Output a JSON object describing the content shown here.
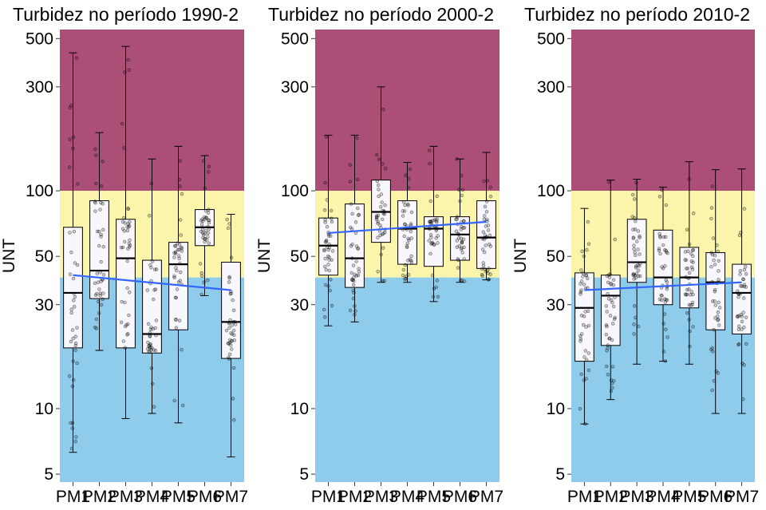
{
  "colors": {
    "band_high": "#ab4f77",
    "band_mid": "#fbf5ab",
    "band_low": "#8fcceb",
    "box_fill": "#f8f7fd",
    "trend": "#3366ff"
  },
  "bands": [
    {
      "from": 100,
      "to": 550,
      "color": "band_high"
    },
    {
      "from": 40,
      "to": 100,
      "color": "band_mid"
    },
    {
      "from": 4.6,
      "to": 40,
      "color": "band_low"
    }
  ],
  "chart_data": [
    {
      "type": "box",
      "title": "Turbidez no período 1990-2",
      "ylabel": "UNT",
      "yscale": "log",
      "ylim": [
        4.6,
        550
      ],
      "yticks": [
        5,
        10,
        30,
        50,
        100,
        300,
        500
      ],
      "ytick_labels": [
        "5",
        "10",
        "30",
        "50",
        "100",
        "300",
        "500"
      ],
      "categories": [
        "PM1",
        "PM2",
        "PM3",
        "PM4",
        "PM5",
        "PM6",
        "PM7"
      ],
      "boxes": [
        {
          "min": 6.3,
          "q1": 19,
          "median": 34,
          "q3": 68,
          "max": 430
        },
        {
          "min": 18.5,
          "q1": 32,
          "median": 43,
          "q3": 90,
          "max": 185
        },
        {
          "min": 9,
          "q1": 19,
          "median": 49,
          "q3": 74,
          "max": 460
        },
        {
          "min": 9.5,
          "q1": 18,
          "median": 22,
          "q3": 48,
          "max": 140
        },
        {
          "min": 8.6,
          "q1": 23,
          "median": 46,
          "q3": 58,
          "max": 160
        },
        {
          "min": 33,
          "q1": 56,
          "median": 68,
          "q3": 82,
          "max": 145
        },
        {
          "min": 6,
          "q1": 17,
          "median": 25,
          "q3": 47,
          "max": 78
        }
      ],
      "trend": {
        "x": [
          "PM1",
          "PM7"
        ],
        "y": [
          41,
          35
        ]
      }
    },
    {
      "type": "box",
      "title": "Turbidez no período 2000-2",
      "ylabel": "UNT",
      "yscale": "log",
      "ylim": [
        4.6,
        550
      ],
      "yticks": [
        5,
        10,
        30,
        50,
        100,
        300,
        500
      ],
      "ytick_labels": [
        "5",
        "10",
        "30",
        "50",
        "100",
        "300",
        "500"
      ],
      "categories": [
        "PM1",
        "PM2",
        "PM3",
        "PM4",
        "PM5",
        "PM6",
        "PM7"
      ],
      "boxes": [
        {
          "min": 24,
          "q1": 41,
          "median": 56,
          "q3": 75,
          "max": 180
        },
        {
          "min": 25,
          "q1": 36,
          "median": 49,
          "q3": 87,
          "max": 180
        },
        {
          "min": 38,
          "q1": 58,
          "median": 80,
          "q3": 112,
          "max": 300
        },
        {
          "min": 38,
          "q1": 46,
          "median": 67,
          "q3": 90,
          "max": 135
        },
        {
          "min": 31,
          "q1": 45,
          "median": 67,
          "q3": 76,
          "max": 160
        },
        {
          "min": 38,
          "q1": 48,
          "median": 63,
          "q3": 76,
          "max": 140
        },
        {
          "min": 39,
          "q1": 44,
          "median": 61,
          "q3": 90,
          "max": 150
        }
      ],
      "trend": {
        "x": [
          "PM1",
          "PM7"
        ],
        "y": [
          64,
          72
        ]
      }
    },
    {
      "type": "box",
      "title": "Turbidez no período 2010-2",
      "ylabel": "UNT",
      "yscale": "log",
      "ylim": [
        4.6,
        550
      ],
      "yticks": [
        5,
        10,
        30,
        50,
        100,
        300,
        500
      ],
      "ytick_labels": [
        "5",
        "10",
        "30",
        "50",
        "100",
        "300",
        "500"
      ],
      "categories": [
        "PM1",
        "PM2",
        "PM3",
        "PM4",
        "PM5",
        "PM6",
        "PM7"
      ],
      "boxes": [
        {
          "min": 8.5,
          "q1": 16.5,
          "median": 29,
          "q3": 42,
          "max": 83
        },
        {
          "min": 11,
          "q1": 19.5,
          "median": 33,
          "q3": 41,
          "max": 112
        },
        {
          "min": 16,
          "q1": 38,
          "median": 47,
          "q3": 74,
          "max": 113
        },
        {
          "min": 16.5,
          "q1": 30,
          "median": 40,
          "q3": 66,
          "max": 104
        },
        {
          "min": 16,
          "q1": 29,
          "median": 40,
          "q3": 55,
          "max": 136
        },
        {
          "min": 9.5,
          "q1": 23,
          "median": 38,
          "q3": 52,
          "max": 125
        },
        {
          "min": 9.5,
          "q1": 22,
          "median": 34,
          "q3": 46,
          "max": 126
        }
      ],
      "trend": {
        "x": [
          "PM1",
          "PM7"
        ],
        "y": [
          35,
          38
        ]
      }
    }
  ]
}
